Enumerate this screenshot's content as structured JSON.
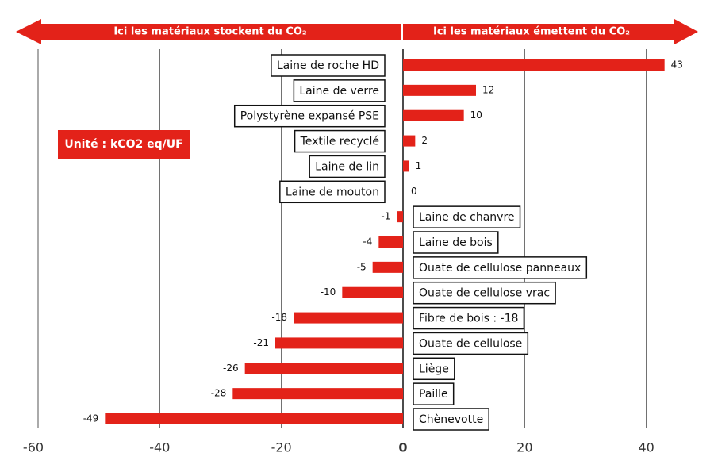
{
  "chart_data": {
    "type": "bar",
    "orientation": "horizontal",
    "header_left": "Ici les matériaux stockent du CO₂",
    "header_right": "Ici les matériaux émettent du CO₂",
    "unit": "Unité : kCO2 eq/UF",
    "categories": [
      "Laine de roche HD",
      "Laine de verre",
      "Polystyrène expansé PSE",
      "Textile recyclé",
      "Laine de lin",
      "Laine de mouton",
      "Laine de chanvre",
      "Laine de bois",
      "Ouate de cellulose panneaux",
      "Ouate de cellulose vrac",
      "Fibre de bois : -18",
      "Ouate de cellulose",
      "Liège",
      "Paille",
      "Chènevotte"
    ],
    "values": [
      43,
      12,
      10,
      2,
      1,
      0,
      -1,
      -4,
      -5,
      -10,
      -18,
      -21,
      -26,
      -28,
      -49
    ],
    "color": "#e32219",
    "xlim": [
      -60,
      45
    ],
    "xticks": [
      -60,
      -40,
      -20,
      0,
      20,
      40
    ],
    "grid": true
  }
}
